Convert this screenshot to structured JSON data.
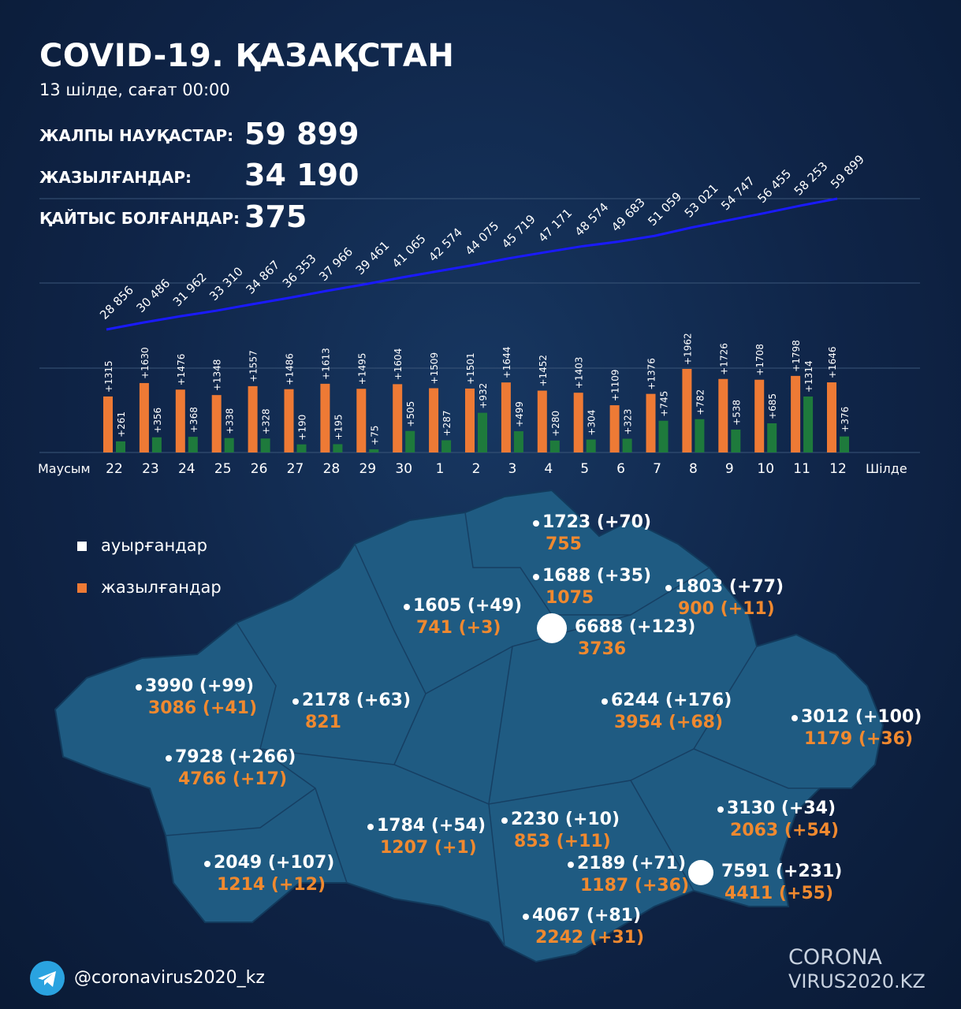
{
  "header": {
    "title": "COVID-19. ҚАЗАҚСТАН",
    "subtitle": "13 шілде, сағат 00:00"
  },
  "stats": [
    {
      "label": "ЖАЛПЫ НАУҚАСТАР:",
      "value": "59 899"
    },
    {
      "label": "ЖАЗЫЛҒАНДАР:",
      "value": "34 190"
    },
    {
      "label": "ҚАЙТЫС БОЛҒАНДАР:",
      "value": "375"
    }
  ],
  "colors": {
    "cases": "#ee7a35",
    "recovered": "#1e7a3c",
    "cumulative_line": "#1a1aff",
    "background": "#0f2447",
    "map": "#1f5b82"
  },
  "chart_data": {
    "type": "bar+line",
    "month_labels": {
      "start": "Маусым",
      "end": "Шілде"
    },
    "categories": [
      "22",
      "23",
      "24",
      "25",
      "26",
      "27",
      "28",
      "29",
      "30",
      "1",
      "2",
      "3",
      "4",
      "5",
      "6",
      "7",
      "8",
      "9",
      "10",
      "11",
      "12"
    ],
    "series": [
      {
        "key": "new_cases",
        "values": [
          1315,
          1630,
          1476,
          1348,
          1557,
          1486,
          1613,
          1495,
          1604,
          1509,
          1501,
          1644,
          1452,
          1403,
          1109,
          1376,
          1962,
          1726,
          1708,
          1798,
          1646
        ],
        "labels": [
          "+1315",
          "+1630",
          "+1476",
          "+1348",
          "+1557",
          "+1486",
          "+1613",
          "+1495",
          "+1604",
          "+1509",
          "+1501",
          "+1644",
          "+1452",
          "+1403",
          "+1109",
          "+1376",
          "+1962",
          "+1726",
          "+1708",
          "+1798",
          "+1646"
        ]
      },
      {
        "key": "new_recovered",
        "values": [
          261,
          356,
          368,
          338,
          328,
          190,
          195,
          75,
          505,
          287,
          932,
          499,
          280,
          304,
          323,
          745,
          782,
          538,
          685,
          1314,
          376
        ],
        "labels": [
          "+261",
          "+356",
          "+368",
          "+338",
          "+328",
          "+190",
          "+195",
          "+75",
          "+505",
          "+287",
          "+932",
          "+499",
          "+280",
          "+304",
          "+323",
          "+745",
          "+782",
          "+538",
          "+685",
          "+1314",
          "+376"
        ]
      },
      {
        "key": "total_cases",
        "values": [
          28856,
          30486,
          31962,
          33310,
          34867,
          36353,
          37966,
          39461,
          41065,
          42574,
          44075,
          45719,
          47171,
          48574,
          49683,
          51059,
          53021,
          54747,
          56455,
          58253,
          59899
        ],
        "labels": [
          "28 856",
          "30 486",
          "31 962",
          "33 310",
          "34 867",
          "36 353",
          "37 966",
          "39 461",
          "41 065",
          "42 574",
          "44 075",
          "45 719",
          "47 171",
          "48 574",
          "49 683",
          "51 059",
          "53 021",
          "54 747",
          "56 455",
          "58 253",
          "59 899"
        ]
      }
    ]
  },
  "legend": {
    "cases": "ауырғандар",
    "recovered": "жазылғандар"
  },
  "regions": [
    {
      "cases": "1723 (+70)",
      "recovered": "755"
    },
    {
      "cases": "1688 (+35)",
      "recovered": "1075"
    },
    {
      "cases": "1803 (+77)",
      "recovered": "900 (+11)"
    },
    {
      "cases": "1605 (+49)",
      "recovered": "741 (+3)"
    },
    {
      "cases": "6688 (+123)",
      "recovered": "3736"
    },
    {
      "cases": "3990 (+99)",
      "recovered": "3086 (+41)"
    },
    {
      "cases": "2178 (+63)",
      "recovered": "821"
    },
    {
      "cases": "6244 (+176)",
      "recovered": "3954 (+68)"
    },
    {
      "cases": "3012 (+100)",
      "recovered": "1179 (+36)"
    },
    {
      "cases": "7928 (+266)",
      "recovered": "4766 (+17)"
    },
    {
      "cases": "3130 (+34)",
      "recovered": "2063 (+54)"
    },
    {
      "cases": "1784 (+54)",
      "recovered": "1207 (+1)"
    },
    {
      "cases": "2230 (+10)",
      "recovered": "853 (+11)"
    },
    {
      "cases": "2049 (+107)",
      "recovered": "1214 (+12)"
    },
    {
      "cases": "2189 (+71)",
      "recovered": "1187 (+36)"
    },
    {
      "cases": "7591 (+231)",
      "recovered": "4411 (+55)"
    },
    {
      "cases": "4067 (+81)",
      "recovered": "2242 (+31)"
    }
  ],
  "footer": {
    "handle": "@coronavirus2020_kz",
    "logo_line1": "CORONA",
    "logo_line2": "VIRUS2020.KZ"
  }
}
